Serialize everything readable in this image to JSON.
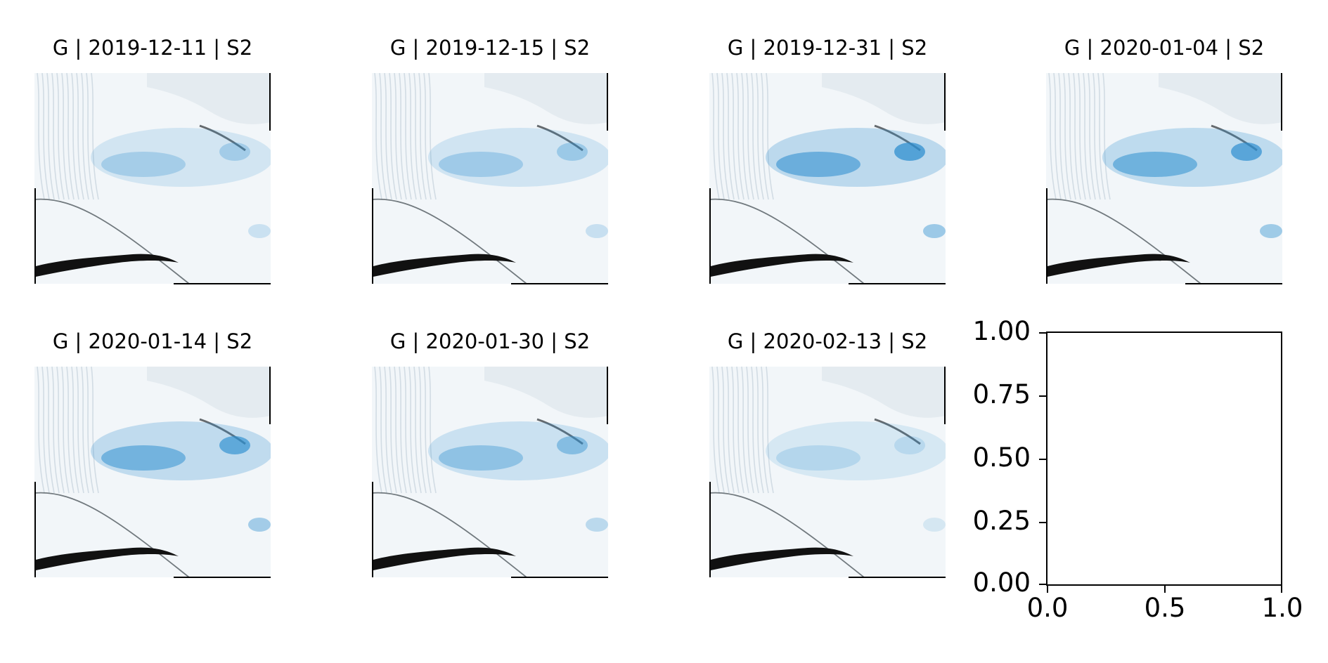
{
  "panels": [
    {
      "title": "G | 2019-12-11 | S2",
      "lake_intensity": 0.25
    },
    {
      "title": "G | 2019-12-15 | S2",
      "lake_intensity": 0.3
    },
    {
      "title": "G | 2019-12-31 | S2",
      "lake_intensity": 0.85
    },
    {
      "title": "G | 2020-01-04 | S2",
      "lake_intensity": 0.8
    },
    {
      "title": "G | 2020-01-14 | S2",
      "lake_intensity": 0.75
    },
    {
      "title": "G | 2020-01-30 | S2",
      "lake_intensity": 0.45
    },
    {
      "title": "G | 2020-02-13 | S2",
      "lake_intensity": 0.1
    }
  ],
  "empty_axes": {
    "yticks": [
      "1.00",
      "0.75",
      "0.50",
      "0.25",
      "0.00"
    ],
    "xticks": [
      "0.0",
      "0.5",
      "1.0"
    ]
  },
  "colors": {
    "ice": "#f2f6f9",
    "lake_blue": "#2e8fd0",
    "crack": "#111111"
  }
}
